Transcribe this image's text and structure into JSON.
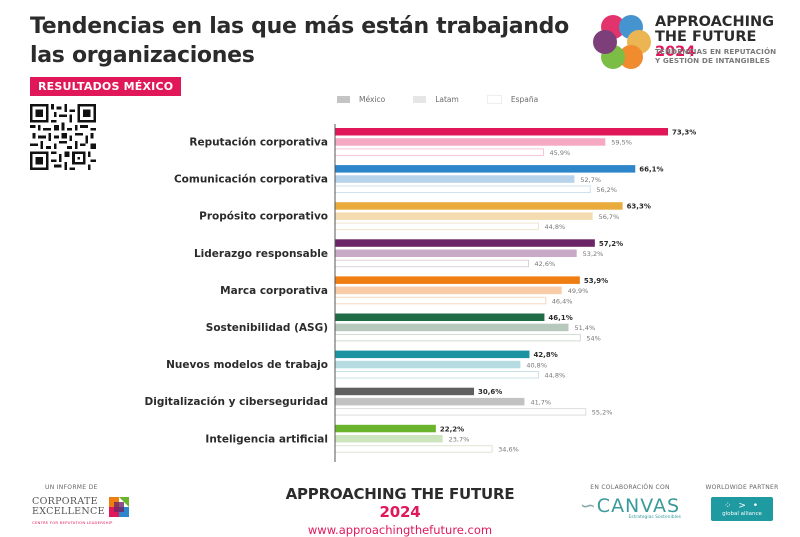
{
  "header": {
    "title": "Tendencias en las que más están trabajando las organizaciones",
    "badge": "RESULTADOS MÉXICO"
  },
  "logo": {
    "title_line1": "APPROACHING",
    "title_line2": "THE FUTURE",
    "year": "2024",
    "subtitle_line1": "TENDENCIAS EN REPUTACIÓN",
    "subtitle_line2": "Y GESTIÓN DE INTANGIBLES"
  },
  "legend": [
    {
      "label": "México",
      "color": "#c4c4c4"
    },
    {
      "label": "Latam",
      "color": "#e6e6e6"
    },
    {
      "label": "España",
      "color": "#ffffff"
    }
  ],
  "chart_data": {
    "type": "bar",
    "orientation": "horizontal",
    "title": "Tendencias en las que más están trabajando las organizaciones",
    "xlabel": "",
    "ylabel": "",
    "xlim": [
      0,
      80
    ],
    "grid": false,
    "legend_position": "top",
    "categories": [
      "Reputación corporativa",
      "Comunicación corporativa",
      "Propósito corporativo",
      "Liderazgo responsable",
      "Marca corporativa",
      "Sostenibilidad (ASG)",
      "Nuevos modelos de trabajo",
      "Digitalización y ciberseguridad",
      "Inteligencia artificial"
    ],
    "series": [
      {
        "name": "México",
        "values": [
          73.3,
          66.1,
          63.3,
          57.2,
          53.9,
          46.1,
          42.8,
          30.6,
          22.2
        ],
        "labels": [
          "73,3%",
          "66,1%",
          "63,3%",
          "57,2%",
          "53,9%",
          "46,1%",
          "42,8%",
          "30,6%",
          "22,2%"
        ]
      },
      {
        "name": "Latam",
        "values": [
          59.5,
          52.7,
          56.7,
          53.2,
          49.9,
          51.4,
          40.8,
          41.7,
          23.7
        ],
        "labels": [
          "59,5%",
          "52,7%",
          "56,7%",
          "53,2%",
          "49,9%",
          "51,4%",
          "40,8%",
          "41,7%",
          "23,7%"
        ]
      },
      {
        "name": "España",
        "values": [
          45.9,
          56.2,
          44.8,
          42.6,
          46.4,
          54,
          44.8,
          55.2,
          34.6
        ],
        "labels": [
          "45,9%",
          "56,2%",
          "44,8%",
          "42,6%",
          "46,4%",
          "54%",
          "44,8%",
          "55,2%",
          "34,6%"
        ]
      }
    ],
    "category_colors": [
      {
        "main": "#e0185a",
        "light": "#f6a9c2",
        "outline": "#f4c6d4"
      },
      {
        "main": "#2d86c9",
        "light": "#b7d3ec",
        "outline": "#cfe0ee"
      },
      {
        "main": "#e9ab3c",
        "light": "#f5dcb0",
        "outline": "#efe3cc"
      },
      {
        "main": "#6b2567",
        "light": "#c8aac6",
        "outline": "#ddd0dc"
      },
      {
        "main": "#ef7d12",
        "light": "#f9cba6",
        "outline": "#f3d8c2"
      },
      {
        "main": "#1f6b46",
        "light": "#b6c9bc",
        "outline": "#d0dcd3"
      },
      {
        "main": "#1b93a0",
        "light": "#b6dbe0",
        "outline": "#c9e2e5"
      },
      {
        "main": "#5f5f5f",
        "light": "#c2c2c2",
        "outline": "#dcdcdc"
      },
      {
        "main": "#6ab42d",
        "light": "#cde5bd",
        "outline": "#dfe4d2"
      }
    ]
  },
  "footer": {
    "report_by": "UN INFORME DE",
    "ce_line1": "CORPORATE",
    "ce_line2": "EXCELLENCE",
    "ce_sub": "CENTRE FOR REPUTATION LEADERSHIP",
    "center_title": "APPROACHING THE FUTURE",
    "center_year": "2024",
    "url": "www.approachingthefuture.com",
    "collab_label": "EN COLABORACIÓN CON",
    "canvas_name": "CANVAS",
    "canvas_sub": "Estrategias Sostenibles",
    "partner_label": "WORLDWIDE PARTNER",
    "partner_name": "global alliance"
  }
}
